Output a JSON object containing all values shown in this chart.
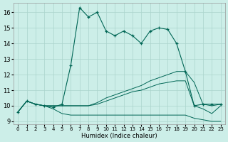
{
  "title": "",
  "xlabel": "Humidex (Indice chaleur)",
  "ylabel": "",
  "bg_color": "#cceee8",
  "grid_color": "#aad4cc",
  "line_color": "#006655",
  "xlim": [
    -0.5,
    23.5
  ],
  "ylim": [
    8.8,
    16.6
  ],
  "xticks": [
    0,
    1,
    2,
    3,
    4,
    5,
    6,
    7,
    8,
    9,
    10,
    11,
    12,
    13,
    14,
    15,
    16,
    17,
    18,
    19,
    20,
    21,
    22,
    23
  ],
  "yticks": [
    9,
    10,
    11,
    12,
    13,
    14,
    15,
    16
  ],
  "main_x": [
    0,
    1,
    2,
    3,
    4,
    5,
    6,
    7,
    8,
    9,
    10,
    11,
    12,
    13,
    14,
    15,
    16,
    17,
    18,
    19,
    20,
    21,
    22,
    23
  ],
  "main_y": [
    9.6,
    10.3,
    10.1,
    10.0,
    9.9,
    10.1,
    12.6,
    16.3,
    15.7,
    16.0,
    14.8,
    14.5,
    14.8,
    14.5,
    14.0,
    14.8,
    15.0,
    14.9,
    14.0,
    12.2,
    10.0,
    10.1,
    10.1,
    10.1
  ],
  "line_top_x": [
    0,
    1,
    2,
    3,
    4,
    5,
    6,
    7,
    8,
    9,
    10,
    11,
    12,
    13,
    14,
    15,
    16,
    17,
    18,
    19,
    20,
    21,
    22,
    23
  ],
  "line_top_y": [
    9.6,
    10.3,
    10.1,
    10.0,
    10.0,
    10.0,
    10.0,
    10.0,
    10.0,
    10.2,
    10.5,
    10.7,
    10.9,
    11.1,
    11.3,
    11.6,
    11.8,
    12.0,
    12.2,
    12.2,
    11.5,
    10.1,
    10.0,
    10.1
  ],
  "line_mid_x": [
    0,
    1,
    2,
    3,
    4,
    5,
    6,
    7,
    8,
    9,
    10,
    11,
    12,
    13,
    14,
    15,
    16,
    17,
    18,
    19,
    20,
    21,
    22,
    23
  ],
  "line_mid_y": [
    9.6,
    10.3,
    10.1,
    10.0,
    10.0,
    10.0,
    10.0,
    10.0,
    10.0,
    10.1,
    10.3,
    10.5,
    10.7,
    10.9,
    11.0,
    11.2,
    11.4,
    11.5,
    11.6,
    11.6,
    10.0,
    9.8,
    9.5,
    10.0
  ],
  "line_bot_x": [
    0,
    1,
    2,
    3,
    4,
    5,
    6,
    7,
    8,
    9,
    10,
    11,
    12,
    13,
    14,
    15,
    16,
    17,
    18,
    19,
    20,
    21,
    22,
    23
  ],
  "line_bot_y": [
    9.6,
    10.3,
    10.1,
    10.0,
    9.8,
    9.5,
    9.4,
    9.4,
    9.4,
    9.4,
    9.4,
    9.4,
    9.4,
    9.4,
    9.4,
    9.4,
    9.4,
    9.4,
    9.4,
    9.4,
    9.2,
    9.1,
    9.0,
    9.0
  ]
}
